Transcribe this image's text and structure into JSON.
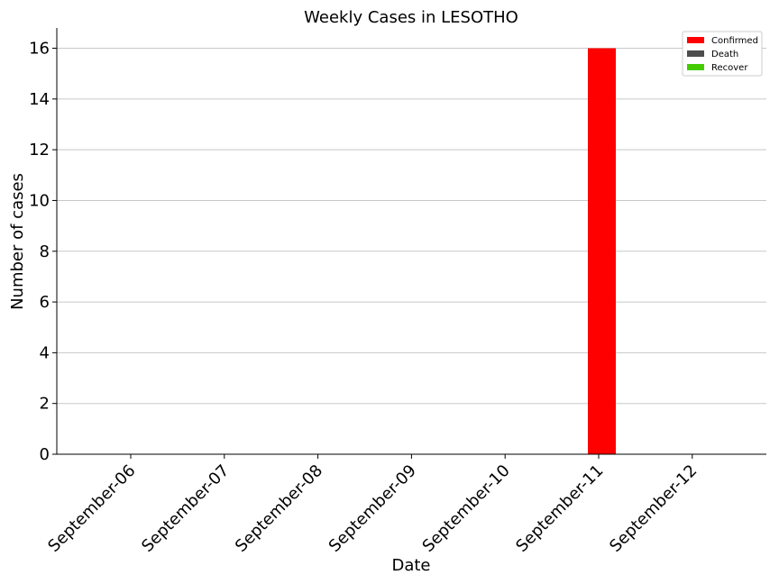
{
  "chart_data": {
    "type": "bar",
    "title": "Weekly Cases in LESOTHO",
    "xlabel": "Date",
    "ylabel": "Number of cases",
    "categories": [
      "September-06",
      "September-07",
      "September-08",
      "September-09",
      "September-10",
      "September-11",
      "September-12"
    ],
    "series": [
      {
        "name": "Confirmed",
        "color": "#ff0000",
        "values": [
          0,
          0,
          0,
          0,
          0,
          16,
          0
        ]
      },
      {
        "name": "Death",
        "color": "#4d4d4d",
        "values": [
          0,
          0,
          0,
          0,
          0,
          0,
          0
        ]
      },
      {
        "name": "Recover",
        "color": "#44cc00",
        "values": [
          0,
          0,
          0,
          0,
          0,
          0,
          0
        ]
      }
    ],
    "ylim": [
      0,
      16.8
    ],
    "yticks": [
      "0",
      "2",
      "4",
      "6",
      "8",
      "10",
      "12",
      "14",
      "16"
    ],
    "grid": "horizontal",
    "legend_position": "top-right"
  }
}
